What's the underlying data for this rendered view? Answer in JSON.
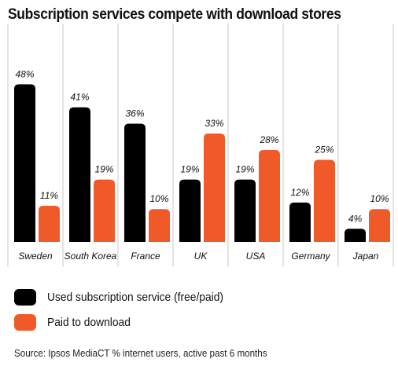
{
  "title": "Subscription services compete with download stores",
  "legend": [
    {
      "label": "Used subscription service (free/paid)",
      "color": "#000000"
    },
    {
      "label": "Paid to download",
      "color": "#f05a28"
    }
  ],
  "source": "Source: Ipsos MediaCT % internet users, active past 6 months",
  "chart_data": {
    "type": "bar",
    "title": "Subscription services compete with download stores",
    "categories": [
      "Sweden",
      "South Korea",
      "France",
      "UK",
      "USA",
      "Germany",
      "Japan"
    ],
    "series": [
      {
        "name": "Used subscription service (free/paid)",
        "color": "#000000",
        "values": [
          48,
          41,
          36,
          19,
          19,
          12,
          4
        ]
      },
      {
        "name": "Paid to download",
        "color": "#f05a28",
        "values": [
          11,
          19,
          10,
          33,
          28,
          25,
          10
        ]
      }
    ],
    "value_labels": [
      [
        "48%",
        "41%",
        "36%",
        "19%",
        "19%",
        "12%",
        "4%"
      ],
      [
        "11%",
        "19%",
        "10%",
        "33%",
        "28%",
        "25%",
        "10%"
      ]
    ],
    "ylim": [
      0,
      48
    ],
    "grid": false,
    "legend_position": "bottom-left"
  }
}
